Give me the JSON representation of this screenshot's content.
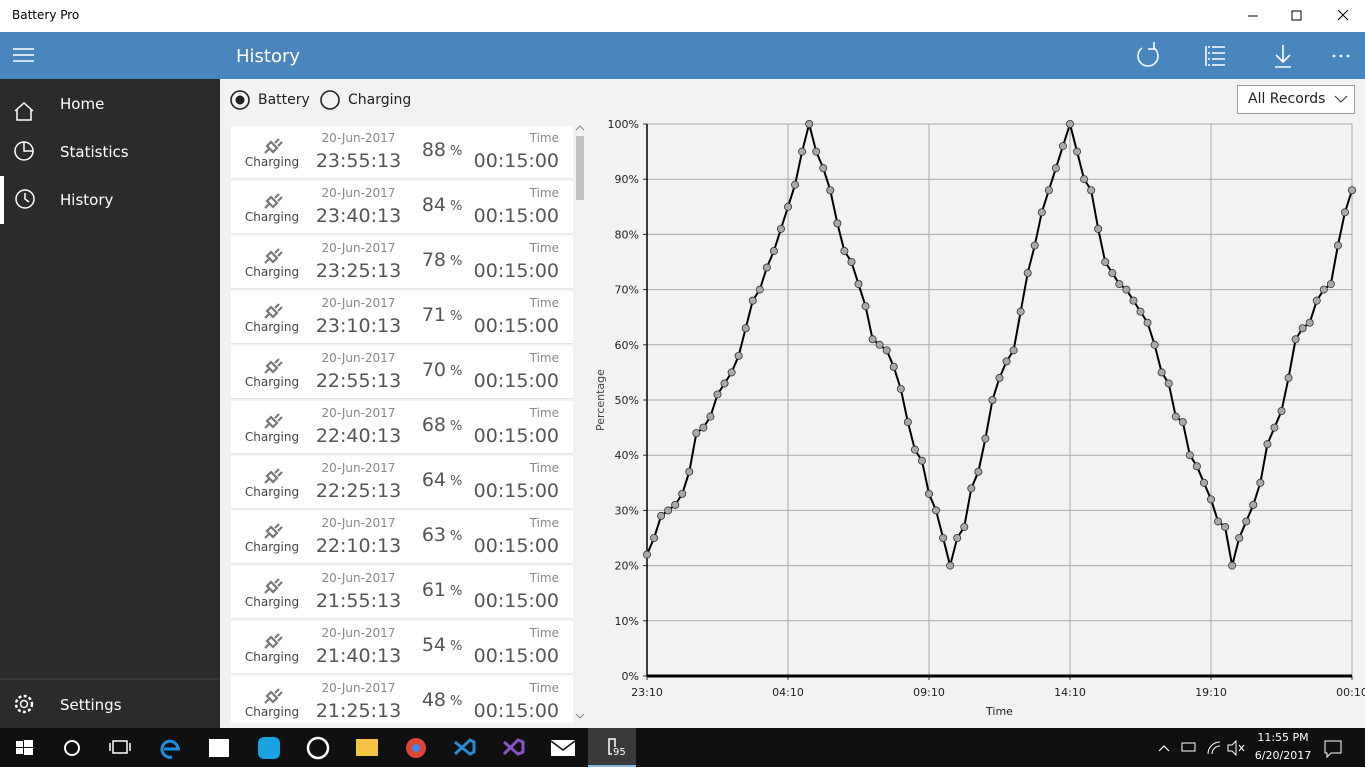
{
  "window": {
    "title": "Battery Pro"
  },
  "header": {
    "title": "History"
  },
  "nav": {
    "items": [
      "Home",
      "Statistics",
      "History"
    ],
    "settings": "Settings"
  },
  "filters": {
    "radios": [
      "Battery",
      "Charging"
    ],
    "dropdown": "All Records"
  },
  "history_list": {
    "percent_unit": "%",
    "rows": [
      {
        "status": "Charging",
        "date": "20-Jun-2017",
        "time": "23:55:13",
        "percent": 88,
        "duration_label": "Time",
        "duration": "00:15:00"
      },
      {
        "status": "Charging",
        "date": "20-Jun-2017",
        "time": "23:40:13",
        "percent": 84,
        "duration_label": "Time",
        "duration": "00:15:00"
      },
      {
        "status": "Charging",
        "date": "20-Jun-2017",
        "time": "23:25:13",
        "percent": 78,
        "duration_label": "Time",
        "duration": "00:15:00"
      },
      {
        "status": "Charging",
        "date": "20-Jun-2017",
        "time": "23:10:13",
        "percent": 71,
        "duration_label": "Time",
        "duration": "00:15:00"
      },
      {
        "status": "Charging",
        "date": "20-Jun-2017",
        "time": "22:55:13",
        "percent": 70,
        "duration_label": "Time",
        "duration": "00:15:00"
      },
      {
        "status": "Charging",
        "date": "20-Jun-2017",
        "time": "22:40:13",
        "percent": 68,
        "duration_label": "Time",
        "duration": "00:15:00"
      },
      {
        "status": "Charging",
        "date": "20-Jun-2017",
        "time": "22:25:13",
        "percent": 64,
        "duration_label": "Time",
        "duration": "00:15:00"
      },
      {
        "status": "Charging",
        "date": "20-Jun-2017",
        "time": "22:10:13",
        "percent": 63,
        "duration_label": "Time",
        "duration": "00:15:00"
      },
      {
        "status": "Charging",
        "date": "20-Jun-2017",
        "time": "21:55:13",
        "percent": 61,
        "duration_label": "Time",
        "duration": "00:15:00"
      },
      {
        "status": "Charging",
        "date": "20-Jun-2017",
        "time": "21:40:13",
        "percent": 54,
        "duration_label": "Time",
        "duration": "00:15:00"
      },
      {
        "status": "Charging",
        "date": "20-Jun-2017",
        "time": "21:25:13",
        "percent": 48,
        "duration_label": "Time",
        "duration": "00:15:00"
      }
    ]
  },
  "chart_data": {
    "type": "line",
    "x_label": "Time",
    "y_label": "Percentage",
    "color": "#000000",
    "marker_color": "#a9a9a9",
    "grid": true,
    "categories": [
      "23:10",
      null,
      null,
      null,
      null,
      null,
      null,
      null,
      null,
      null,
      null,
      null,
      null,
      null,
      null,
      null,
      null,
      null,
      null,
      null,
      "04:10",
      null,
      null,
      null,
      null,
      null,
      null,
      null,
      null,
      null,
      null,
      null,
      null,
      null,
      null,
      null,
      null,
      null,
      null,
      null,
      "09:10",
      null,
      null,
      null,
      null,
      null,
      null,
      null,
      null,
      null,
      null,
      null,
      null,
      null,
      null,
      null,
      null,
      null,
      null,
      null,
      "14:10",
      null,
      null,
      null,
      null,
      null,
      null,
      null,
      null,
      null,
      null,
      null,
      null,
      null,
      null,
      null,
      null,
      null,
      null,
      null,
      "19:10",
      null,
      null,
      null,
      null,
      null,
      null,
      null,
      null,
      null,
      null,
      null,
      null,
      null,
      null,
      null,
      null,
      null,
      null,
      null,
      "00:10"
    ],
    "values": [
      22,
      25,
      29,
      30,
      31,
      33,
      37,
      44,
      45,
      47,
      51,
      53,
      55,
      58,
      63,
      68,
      70,
      74,
      77,
      81,
      85,
      89,
      95,
      100,
      95,
      92,
      88,
      82,
      77,
      75,
      71,
      67,
      61,
      60,
      59,
      56,
      52,
      46,
      41,
      39,
      33,
      30,
      25,
      20,
      25,
      27,
      34,
      37,
      43,
      50,
      54,
      57,
      59,
      66,
      73,
      78,
      84,
      88,
      92,
      96,
      100,
      95,
      90,
      88,
      81,
      75,
      73,
      71,
      70,
      68,
      66,
      64,
      60,
      55,
      53,
      47,
      46,
      40,
      38,
      35,
      32,
      28,
      27,
      20,
      25,
      28,
      31,
      35,
      42,
      45,
      48,
      54,
      61,
      63,
      64,
      68,
      70,
      71,
      78,
      84,
      88
    ],
    "ylim": [
      0,
      100
    ],
    "yticks": [
      {
        "value": 0,
        "label": "0%"
      },
      {
        "value": 10,
        "label": "10%"
      },
      {
        "value": 20,
        "label": "20%"
      },
      {
        "value": 30,
        "label": "30%"
      },
      {
        "value": 40,
        "label": "40%"
      },
      {
        "value": 50,
        "label": "50%"
      },
      {
        "value": 60,
        "label": "60%"
      },
      {
        "value": 70,
        "label": "70%"
      },
      {
        "value": 80,
        "label": "80%"
      },
      {
        "value": 90,
        "label": "90%"
      },
      {
        "value": 100,
        "label": "100%"
      }
    ]
  },
  "taskbar": {
    "battery_badge": "95",
    "clock_time": "11:55 PM",
    "clock_date": "6/20/2017"
  }
}
